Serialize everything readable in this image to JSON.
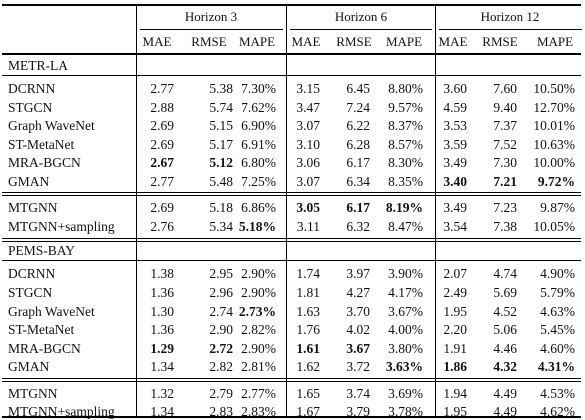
{
  "horizons": [
    "Horizon 3",
    "Horizon 6",
    "Horizon 12"
  ],
  "metrics": [
    "MAE",
    "RMSE",
    "MAPE",
    "MAE",
    "RMSE",
    "MAPE",
    "MAE",
    "RMSE",
    "MAPE"
  ],
  "sections": [
    {
      "name": "METR-LA",
      "groups": [
        [
          {
            "model": "DCRNN",
            "v": [
              "2.77",
              "5.38",
              "7.30%",
              "3.15",
              "6.45",
              "8.80%",
              "3.60",
              "7.60",
              "10.50%"
            ],
            "bold": []
          },
          {
            "model": "STGCN",
            "v": [
              "2.88",
              "5.74",
              "7.62%",
              "3.47",
              "7.24",
              "9.57%",
              "4.59",
              "9.40",
              "12.70%"
            ],
            "bold": []
          },
          {
            "model": "Graph WaveNet",
            "v": [
              "2.69",
              "5.15",
              "6.90%",
              "3.07",
              "6.22",
              "8.37%",
              "3.53",
              "7.37",
              "10.01%"
            ],
            "bold": []
          },
          {
            "model": "ST-MetaNet",
            "v": [
              "2.69",
              "5.17",
              "6.91%",
              "3.10",
              "6.28",
              "8.57%",
              "3.59",
              "7.52",
              "10.63%"
            ],
            "bold": []
          },
          {
            "model": "MRA-BGCN",
            "v": [
              "2.67",
              "5.12",
              "6.80%",
              "3.06",
              "6.17",
              "8.30%",
              "3.49",
              "7.30",
              "10.00%"
            ],
            "bold": [
              0,
              1
            ]
          },
          {
            "model": "GMAN",
            "v": [
              "2.77",
              "5.48",
              "7.25%",
              "3.07",
              "6.34",
              "8.35%",
              "3.40",
              "7.21",
              "9.72%"
            ],
            "bold": [
              6,
              7,
              8
            ]
          }
        ],
        [
          {
            "model": "MTGNN",
            "v": [
              "2.69",
              "5.18",
              "6.86%",
              "3.05",
              "6.17",
              "8.19%",
              "3.49",
              "7.23",
              "9.87%"
            ],
            "bold": [
              3,
              4,
              5
            ]
          },
          {
            "model": "MTGNN+sampling",
            "v": [
              "2.76",
              "5.34",
              "5.18%",
              "3.11",
              "6.32",
              "8.47%",
              "3.54",
              "7.38",
              "10.05%"
            ],
            "bold": [
              2
            ]
          }
        ]
      ]
    },
    {
      "name": "PEMS-BAY",
      "groups": [
        [
          {
            "model": "DCRNN",
            "v": [
              "1.38",
              "2.95",
              "2.90%",
              "1.74",
              "3.97",
              "3.90%",
              "2.07",
              "4.74",
              "4.90%"
            ],
            "bold": []
          },
          {
            "model": "STGCN",
            "v": [
              "1.36",
              "2.96",
              "2.90%",
              "1.81",
              "4.27",
              "4.17%",
              "2.49",
              "5.69",
              "5.79%"
            ],
            "bold": []
          },
          {
            "model": "Graph WaveNet",
            "v": [
              "1.30",
              "2.74",
              "2.73%",
              "1.63",
              "3.70",
              "3.67%",
              "1.95",
              "4.52",
              "4.63%"
            ],
            "bold": [
              2
            ]
          },
          {
            "model": "ST-MetaNet",
            "v": [
              "1.36",
              "2.90",
              "2.82%",
              "1.76",
              "4.02",
              "4.00%",
              "2.20",
              "5.06",
              "5.45%"
            ],
            "bold": []
          },
          {
            "model": "MRA-BGCN",
            "v": [
              "1.29",
              "2.72",
              "2.90%",
              "1.61",
              "3.67",
              "3.80%",
              "1.91",
              "4.46",
              "4.60%"
            ],
            "bold": [
              0,
              1,
              3,
              4
            ]
          },
          {
            "model": "GMAN",
            "v": [
              "1.34",
              "2.82",
              "2.81%",
              "1.62",
              "3.72",
              "3.63%",
              "1.86",
              "4.32",
              "4.31%"
            ],
            "bold": [
              5,
              6,
              7,
              8
            ]
          }
        ],
        [
          {
            "model": "MTGNN",
            "v": [
              "1.32",
              "2.79",
              "2.77%",
              "1.65",
              "3.74",
              "3.69%",
              "1.94",
              "4.49",
              "4.53%"
            ],
            "bold": []
          },
          {
            "model": "MTGNN+sampling",
            "v": [
              "1.34",
              "2.83",
              "2.83%",
              "1.67",
              "3.79",
              "3.78%",
              "1.95",
              "4.49",
              "4.62%"
            ],
            "bold": []
          }
        ]
      ]
    }
  ]
}
